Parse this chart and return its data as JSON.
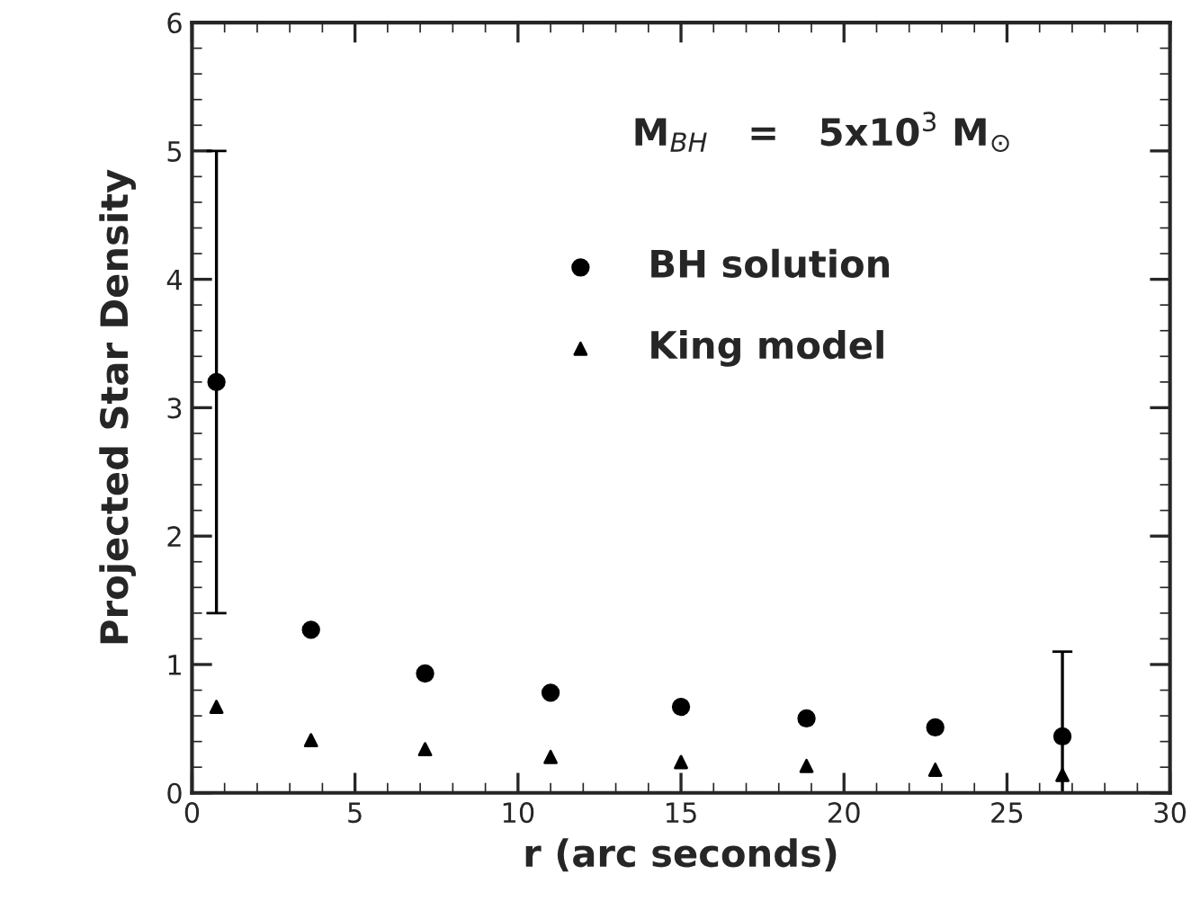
{
  "chart_data": {
    "type": "scatter",
    "xlabel": "r (arc seconds)",
    "ylabel": "Projected Star Density",
    "xlim": [
      0,
      30
    ],
    "ylim": [
      0,
      6
    ],
    "xticks": [
      0,
      5,
      10,
      15,
      20,
      25,
      30
    ],
    "yticks": [
      0,
      1,
      2,
      3,
      4,
      5,
      6
    ],
    "annotations": [
      "M$_{BH}$   =   5x10$^{3}$ M$_{⊙}$"
    ],
    "legend": "top right",
    "grid": false,
    "series": [
      {
        "name": "BH solution",
        "color": "#000000",
        "marker": "circle",
        "x": [
          0.75,
          3.65,
          7.15,
          11.0,
          15.0,
          18.85,
          22.8,
          26.7
        ],
        "values": [
          3.2,
          1.27,
          0.93,
          0.78,
          0.67,
          0.58,
          0.51,
          0.44
        ],
        "errors": [
          [
            1.4,
            5.0
          ],
          null,
          null,
          null,
          null,
          null,
          null,
          [
            0.0,
            1.1
          ]
        ]
      },
      {
        "name": "King model",
        "color": "#000000",
        "marker": "triangle",
        "x": [
          0.75,
          3.65,
          7.15,
          11.0,
          15.0,
          18.85,
          22.8,
          26.7
        ],
        "values": [
          0.67,
          0.41,
          0.34,
          0.28,
          0.24,
          0.21,
          0.18,
          0.14
        ]
      }
    ]
  }
}
